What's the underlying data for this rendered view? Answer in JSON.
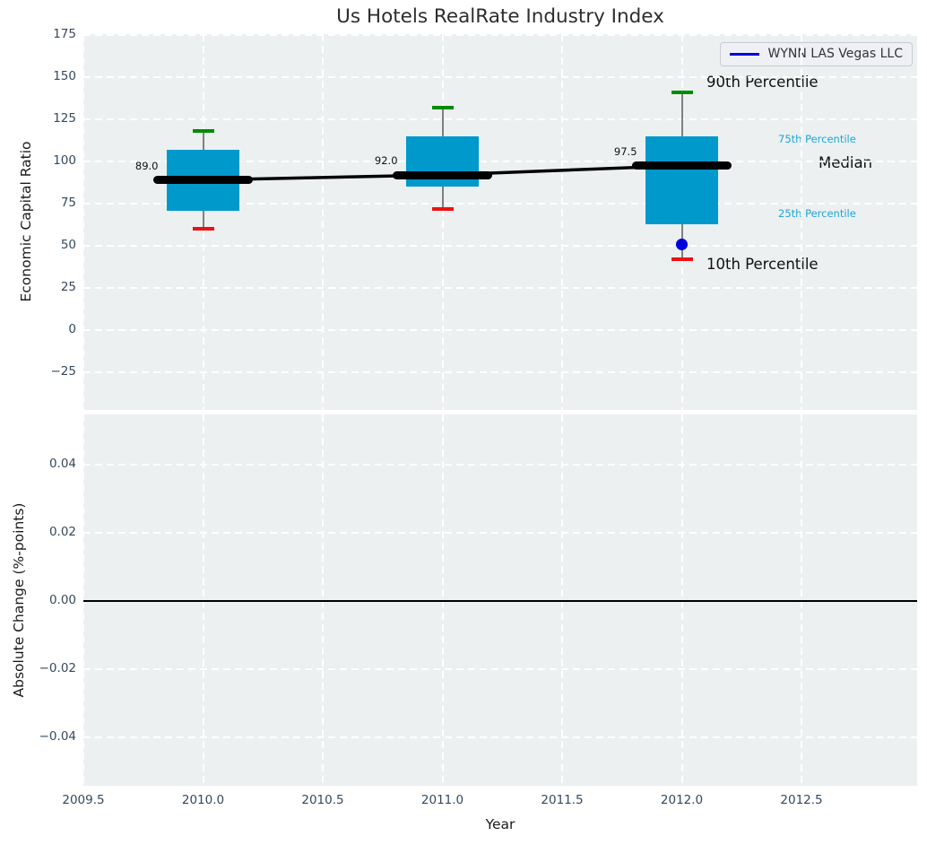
{
  "title": "Us Hotels RealRate Industry Index",
  "legend": {
    "label": "WYNN LAS Vegas LLC"
  },
  "colors": {
    "box_fill": "#0099cc",
    "median_line": "#000000",
    "whisker": "#808080",
    "cap_high": "#008c00",
    "cap_low": "#ee1111",
    "company_series": "#0000dd",
    "plot_background": "#ecf0f1",
    "tick_text": "#34495e",
    "percentile_small_label": "#1da7d6"
  },
  "chart_data": [
    {
      "type": "boxplot",
      "title": "Us Hotels RealRate Industry Index",
      "ylabel": "Economic Capital Ratio",
      "ylim": [
        -47.3,
        175.5
      ],
      "ytick_values": [
        175,
        150,
        125,
        100,
        75,
        50,
        25,
        0,
        -25
      ],
      "ytick_labels": [
        "175",
        "150",
        "125",
        "100",
        "75",
        "50",
        "25",
        "0",
        "−25"
      ],
      "xlim": [
        2009.5,
        2012.983
      ],
      "xtick_values": [
        2009.5,
        2010.0,
        2010.5,
        2011.0,
        2011.5,
        2012.0,
        2012.5
      ],
      "grid": "white-dashed",
      "legend_position": "upper-right",
      "series_label": "WYNN LAS Vegas LLC",
      "boxes": [
        {
          "year": 2010,
          "whisker_low": 60,
          "q1": 71,
          "median": 89.0,
          "q3": 107,
          "whisker_high": 118,
          "median_label": "89.0"
        },
        {
          "year": 2011,
          "whisker_low": 72,
          "q1": 85,
          "median": 92.0,
          "q3": 115,
          "whisker_high": 132,
          "median_label": "92.0"
        },
        {
          "year": 2012,
          "whisker_low": 42,
          "q1": 63,
          "median": 97.5,
          "q3": 115,
          "whisker_high": 141,
          "median_label": "97.5"
        }
      ],
      "median_trend": {
        "x": [
          2010,
          2011,
          2012
        ],
        "y": [
          89.0,
          92.0,
          97.5
        ]
      },
      "company_points": [
        {
          "x": 2012,
          "y": 51
        }
      ],
      "percentile_labels": {
        "p90": "90th Percentile",
        "p75": "75th Percentile",
        "median": "Median",
        "p25": "25th Percentile",
        "p10": "10th Percentile"
      }
    },
    {
      "type": "line",
      "ylabel": "Absolute Change (%-points)",
      "ylim": [
        -0.0542,
        0.0547
      ],
      "ytick_values": [
        0.04,
        0.02,
        0.0,
        -0.02,
        -0.04
      ],
      "ytick_labels": [
        "0.04",
        "0.02",
        "0.00",
        "−0.02",
        "−0.04"
      ],
      "xlabel": "Year",
      "xlim": [
        2009.5,
        2012.983
      ],
      "xtick_values": [
        2009.5,
        2010.0,
        2010.5,
        2011.0,
        2011.5,
        2012.0,
        2012.5
      ],
      "xtick_labels": [
        "2009.5",
        "2010.0",
        "2010.5",
        "2011.0",
        "2011.5",
        "2012.0",
        "2012.5"
      ],
      "zero_line": 0.0,
      "values": []
    }
  ]
}
